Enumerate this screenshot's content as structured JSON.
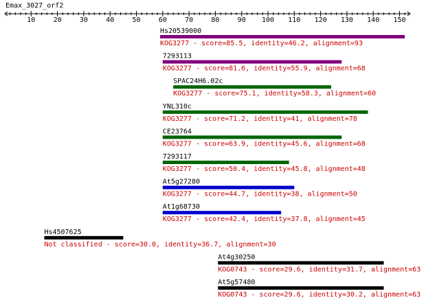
{
  "title": "Emax_3027_orf2",
  "axis": {
    "min": 0,
    "max": 154,
    "major_ticks": [
      10,
      20,
      30,
      40,
      50,
      60,
      70,
      80,
      90,
      100,
      110,
      120,
      130,
      140,
      150
    ],
    "minor_step": 2
  },
  "colors": {
    "purple": "#800080",
    "green": "#006400",
    "blue": "#0000cc",
    "black": "#000000",
    "red_text": "#cc0000"
  },
  "hits": [
    {
      "name": "Hs20539000",
      "start": 59,
      "end": 152,
      "color": "purple",
      "description": "KOG3277 - score=85.5, identity=46.2, alignment=93"
    },
    {
      "name": "7293113",
      "start": 60,
      "end": 128,
      "color": "purple",
      "description": "KOG3277 - score=81.6, identity=55.9, alignment=68"
    },
    {
      "name": "SPAC24H6.02c",
      "start": 64,
      "end": 124,
      "color": "green",
      "description": "KOG3277 - score=75.1, identity=58.3, alignment=60"
    },
    {
      "name": "YNL310c",
      "start": 60,
      "end": 138,
      "color": "green",
      "description": "KOG3277 - score=71.2, identity=41, alignment=78"
    },
    {
      "name": "CE23764",
      "start": 60,
      "end": 128,
      "color": "green",
      "description": "KOG3277 - score=63.9, identity=45.6, alignment=68"
    },
    {
      "name": "7293117",
      "start": 60,
      "end": 108,
      "color": "green",
      "description": "KOG3277 - score=50.4, identity=45.8, alignment=48"
    },
    {
      "name": "At5g27280",
      "start": 60,
      "end": 110,
      "color": "blue",
      "description": "KOG3277 - score=44.7, identity=38, alignment=50"
    },
    {
      "name": "At1g68730",
      "start": 60,
      "end": 105,
      "color": "blue",
      "description": "KOG3277 - score=42.4, identity=37.8, alignment=45"
    },
    {
      "name": "Hs4507625",
      "start": 15,
      "end": 45,
      "color": "black",
      "description": "Not classified - score=30.0, identity=36.7, alignment=30"
    },
    {
      "name": "At4g30250",
      "start": 81,
      "end": 144,
      "color": "black",
      "description": "KOG0743 - score=29.6, identity=31.7, alignment=63"
    },
    {
      "name": "At5g57480",
      "start": 81,
      "end": 144,
      "color": "black",
      "description": "KOG0743 - score=29.6, identity=30.2, alignment=63"
    }
  ]
}
